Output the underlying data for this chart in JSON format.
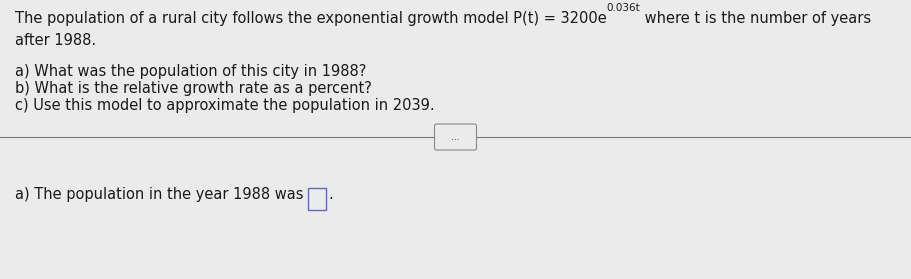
{
  "bg_color": "#ebebeb",
  "text_color": "#1a1a1a",
  "font_size": 10.5,
  "font_size_super": 7.5,
  "line1_part1": "The population of a rural city follows the exponential growth model P(t) = 3200e",
  "line1_super": "0.036t",
  "line1_part2": " where t is the number of years",
  "line2": "after 1988.",
  "q_a": "a) What was the population of this city in 1988?",
  "q_b": "b) What is the relative growth rate as a percent?",
  "q_c": "c) Use this model to approximate the population in 2039.",
  "divider_dots": "...",
  "answer_prefix": "a) The population in the year 1988 was",
  "answer_suffix": "."
}
